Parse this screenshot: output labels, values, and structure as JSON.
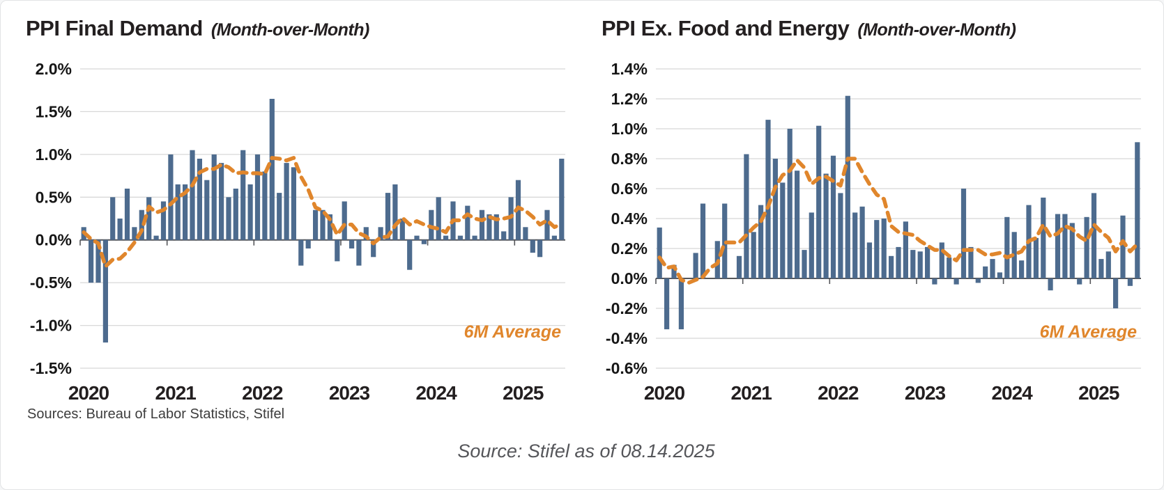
{
  "footnote": "Sources: Bureau of Labor Statistics, Stifel",
  "source_line": "Source: Stifel as of 08.14.2025",
  "legend_label": "6M Average",
  "colors": {
    "bar": "#4d6b8e",
    "line": "#e0862c",
    "grid": "#d8d8d8",
    "zero_axis": "#55565a",
    "title": "#231f20",
    "source_text": "#55565a"
  },
  "chart_data": [
    {
      "type": "bar",
      "title": "PPI Final Demand",
      "subtitle": "(Month-over-Month)",
      "frequency": "monthly",
      "x_years": [
        "2020",
        "2021",
        "2022",
        "2023",
        "2024",
        "2025"
      ],
      "y_axis": {
        "min": -1.5,
        "max": 2.0,
        "step": 0.5,
        "labels": [
          "2.0%",
          "1.5%",
          "1.0%",
          "0.5%",
          "0.0%",
          "-0.5%",
          "-1.0%",
          "-1.5%"
        ]
      },
      "bars": {
        "name": "PPI Final Demand MoM %",
        "values": [
          0.15,
          -0.5,
          -0.5,
          -1.2,
          0.5,
          0.25,
          0.6,
          0.15,
          0.35,
          0.5,
          0.05,
          0.45,
          1.0,
          0.65,
          0.65,
          1.05,
          0.95,
          0.7,
          1.0,
          0.9,
          0.5,
          0.6,
          1.05,
          0.65,
          1.0,
          0.8,
          1.65,
          0.55,
          0.9,
          0.85,
          -0.3,
          -0.1,
          0.35,
          0.35,
          0.3,
          -0.25,
          0.45,
          -0.1,
          -0.3,
          0.15,
          -0.2,
          0.15,
          0.55,
          0.65,
          0.25,
          -0.35,
          0.05,
          -0.05,
          0.35,
          0.5,
          0.05,
          0.45,
          0.05,
          0.4,
          0.05,
          0.35,
          0.3,
          0.3,
          0.1,
          0.5,
          0.7,
          0.15,
          -0.15,
          -0.2,
          0.35,
          0.05,
          0.95
        ]
      },
      "line": {
        "name": "6M Average",
        "values": [
          0.09,
          0.01,
          -0.04,
          -0.31,
          -0.23,
          -0.22,
          -0.14,
          -0.03,
          0.11,
          0.39,
          0.32,
          0.35,
          0.42,
          0.5,
          0.55,
          0.64,
          0.79,
          0.83,
          0.83,
          0.88,
          0.85,
          0.78,
          0.79,
          0.78,
          0.78,
          0.77,
          0.96,
          0.95,
          0.93,
          0.96,
          0.74,
          0.59,
          0.38,
          0.34,
          0.24,
          0.06,
          0.18,
          0.18,
          0.08,
          0.04,
          -0.04,
          0.03,
          0.04,
          0.17,
          0.26,
          0.18,
          0.22,
          0.18,
          0.15,
          0.13,
          0.09,
          0.23,
          0.23,
          0.3,
          0.25,
          0.23,
          0.27,
          0.24,
          0.25,
          0.27,
          0.38,
          0.34,
          0.27,
          0.18,
          0.23,
          0.15,
          0.19
        ]
      }
    },
    {
      "type": "bar",
      "title": "PPI Ex. Food and Energy",
      "subtitle": "(Month-over-Month)",
      "frequency": "monthly",
      "x_years": [
        "2020",
        "2021",
        "2022",
        "2023",
        "2024",
        "2025"
      ],
      "y_axis": {
        "min": -0.6,
        "max": 1.4,
        "step": 0.2,
        "labels": [
          "1.4%",
          "1.2%",
          "1.0%",
          "0.8%",
          "0.6%",
          "0.4%",
          "0.2%",
          "0.0%",
          "-0.2%",
          "-0.4%",
          "-0.6%"
        ]
      },
      "bars": {
        "name": "PPI Ex. Food and Energy MoM %",
        "values": [
          0.34,
          -0.34,
          0.09,
          -0.34,
          0,
          0.17,
          0.5,
          0,
          0.25,
          0.5,
          0,
          0.15,
          0.83,
          0.31,
          0.49,
          1.06,
          0.8,
          0.64,
          1.0,
          0.72,
          0.19,
          0.44,
          1.02,
          0.7,
          0.82,
          0.57,
          1.22,
          0.44,
          0.48,
          0.24,
          0.39,
          0.4,
          0.15,
          0.21,
          0.38,
          0.19,
          0.18,
          0.21,
          -0.04,
          0.24,
          0.14,
          -0.04,
          0.6,
          0.21,
          -0.03,
          0.08,
          0.13,
          0.04,
          0.41,
          0.31,
          0.12,
          0.49,
          0.27,
          0.54,
          -0.08,
          0.43,
          0.43,
          0.37,
          -0.04,
          0.41,
          0.57,
          0.13,
          0.18,
          -0.2,
          0.42,
          -0.05,
          0.91
        ]
      },
      "line": {
        "name": "6M Average",
        "values": [
          0.14,
          0.07,
          0.08,
          -0.01,
          -0.03,
          -0.01,
          0.01,
          0.07,
          0.1,
          0.24,
          0.24,
          0.24,
          0.29,
          0.34,
          0.38,
          0.48,
          0.61,
          0.69,
          0.72,
          0.79,
          0.74,
          0.63,
          0.67,
          0.68,
          0.65,
          0.62,
          0.8,
          0.8,
          0.71,
          0.63,
          0.56,
          0.53,
          0.35,
          0.31,
          0.3,
          0.29,
          0.25,
          0.22,
          0.19,
          0.19,
          0.15,
          0.12,
          0.19,
          0.19,
          0.19,
          0.16,
          0.16,
          0.17,
          0.14,
          0.16,
          0.18,
          0.25,
          0.27,
          0.36,
          0.28,
          0.3,
          0.35,
          0.33,
          0.28,
          0.25,
          0.36,
          0.31,
          0.27,
          0.18,
          0.25,
          0.18,
          0.23
        ]
      }
    }
  ]
}
